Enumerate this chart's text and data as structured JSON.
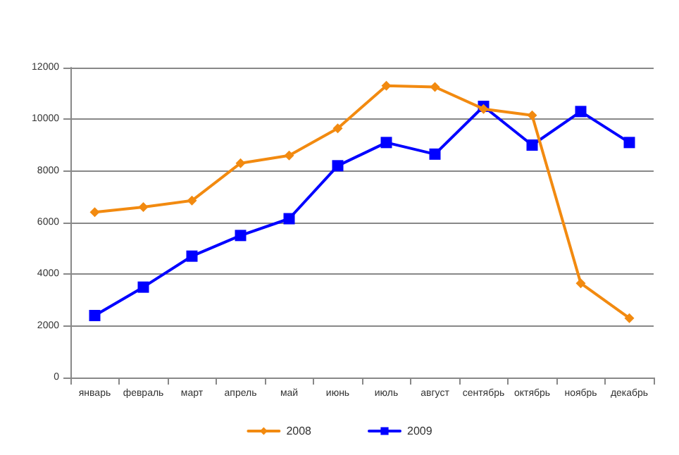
{
  "chart_data": {
    "type": "line",
    "categories": [
      "январь",
      "февраль",
      "март",
      "апрель",
      "май",
      "июнь",
      "июль",
      "август",
      "сентябрь",
      "октябрь",
      "ноябрь",
      "декабрь"
    ],
    "series": [
      {
        "name": "2008",
        "color": "#f28a10",
        "marker": "diamond",
        "values": [
          6400,
          6600,
          6850,
          8300,
          8600,
          9650,
          11300,
          11250,
          10400,
          10150,
          3650,
          2300
        ]
      },
      {
        "name": "2009",
        "color": "#0000ff",
        "marker": "square",
        "values": [
          2400,
          3500,
          4700,
          5500,
          6150,
          8200,
          9100,
          8650,
          10500,
          9000,
          10300,
          9100
        ]
      }
    ],
    "ylim": [
      0,
      12000
    ],
    "yticks": [
      0,
      2000,
      4000,
      6000,
      8000,
      10000,
      12000
    ],
    "grid": "y",
    "legend": "bottom"
  }
}
